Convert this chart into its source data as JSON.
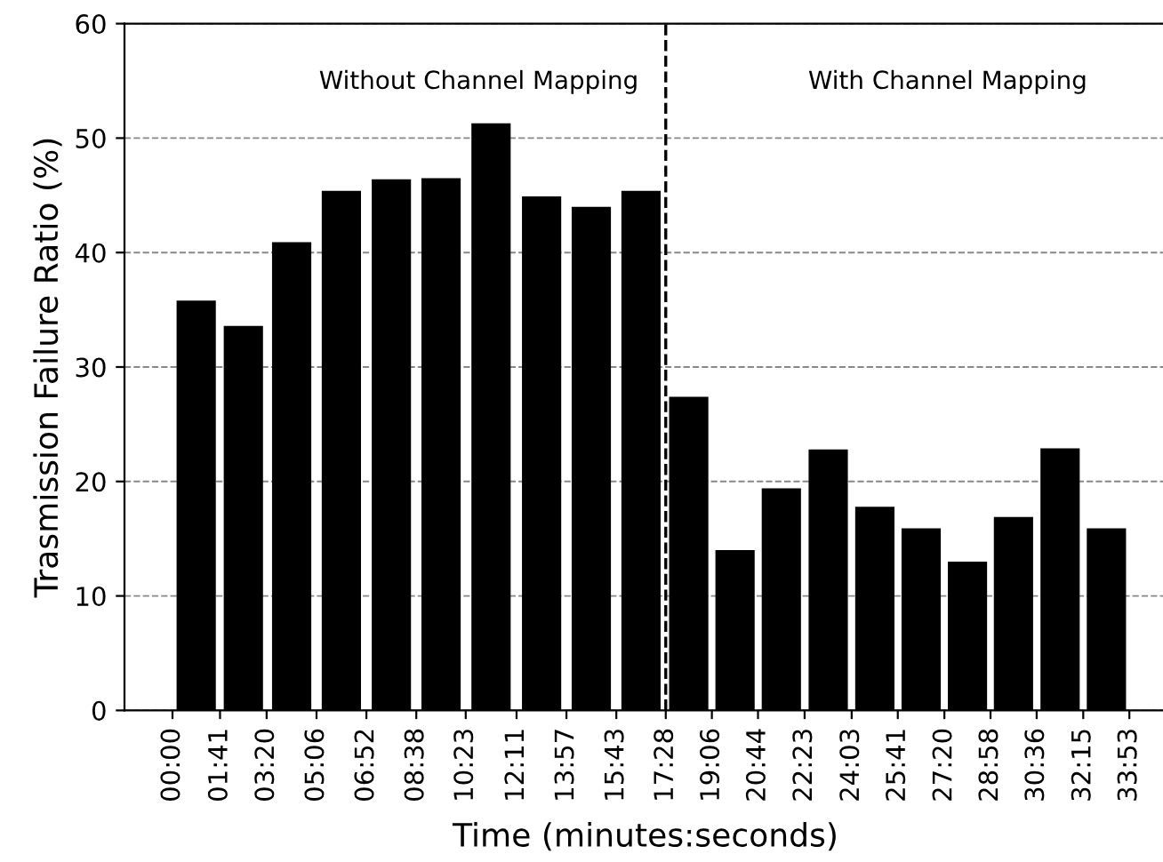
{
  "chart_data": {
    "type": "bar",
    "xlabel": "Time (minutes:seconds)",
    "ylabel": "Trasmission Failure Ratio (%)",
    "x": [
      0.84,
      2.51,
      4.22,
      5.98,
      7.75,
      9.51,
      11.28,
      13.07,
      14.83,
      16.59,
      18.28,
      19.92,
      21.56,
      23.22,
      24.87,
      26.51,
      28.15,
      29.78,
      31.43,
      33.07
    ],
    "values": [
      35.8,
      33.6,
      40.9,
      45.4,
      46.4,
      46.5,
      51.3,
      44.9,
      44.0,
      45.4,
      27.4,
      14.0,
      19.4,
      22.8,
      17.8,
      15.9,
      13.0,
      16.9,
      22.9,
      15.9
    ],
    "color": "#000000",
    "xlim": [
      -1.7,
      35.2
    ],
    "xticks": [
      {
        "value": 0,
        "label": "00:00"
      },
      {
        "value": 1.6833,
        "label": "01:41"
      },
      {
        "value": 3.3333,
        "label": "03:20"
      },
      {
        "value": 5.1,
        "label": "05:06"
      },
      {
        "value": 6.8667,
        "label": "06:52"
      },
      {
        "value": 8.6333,
        "label": "08:38"
      },
      {
        "value": 10.3833,
        "label": "10:23"
      },
      {
        "value": 12.1833,
        "label": "12:11"
      },
      {
        "value": 13.95,
        "label": "13:57"
      },
      {
        "value": 15.7167,
        "label": "15:43"
      },
      {
        "value": 17.4667,
        "label": "17:28"
      },
      {
        "value": 19.1,
        "label": "19:06"
      },
      {
        "value": 20.7333,
        "label": "20:44"
      },
      {
        "value": 22.3833,
        "label": "22:23"
      },
      {
        "value": 24.05,
        "label": "24:03"
      },
      {
        "value": 25.6833,
        "label": "25:41"
      },
      {
        "value": 27.3333,
        "label": "27:20"
      },
      {
        "value": 28.9667,
        "label": "28:58"
      },
      {
        "value": 30.6,
        "label": "30:36"
      },
      {
        "value": 32.25,
        "label": "32:15"
      },
      {
        "value": 33.8833,
        "label": "33:53"
      }
    ],
    "ylim": [
      0,
      60
    ],
    "yticks": [
      0,
      10,
      20,
      30,
      40,
      50,
      60
    ],
    "grid": "y",
    "ref_lines": [
      {
        "axis": "x",
        "value": 17.4667,
        "color": "#000000",
        "line_style": "dashed"
      }
    ],
    "annotations": [
      "Without Channel Mapping",
      "With Channel Mapping"
    ]
  }
}
